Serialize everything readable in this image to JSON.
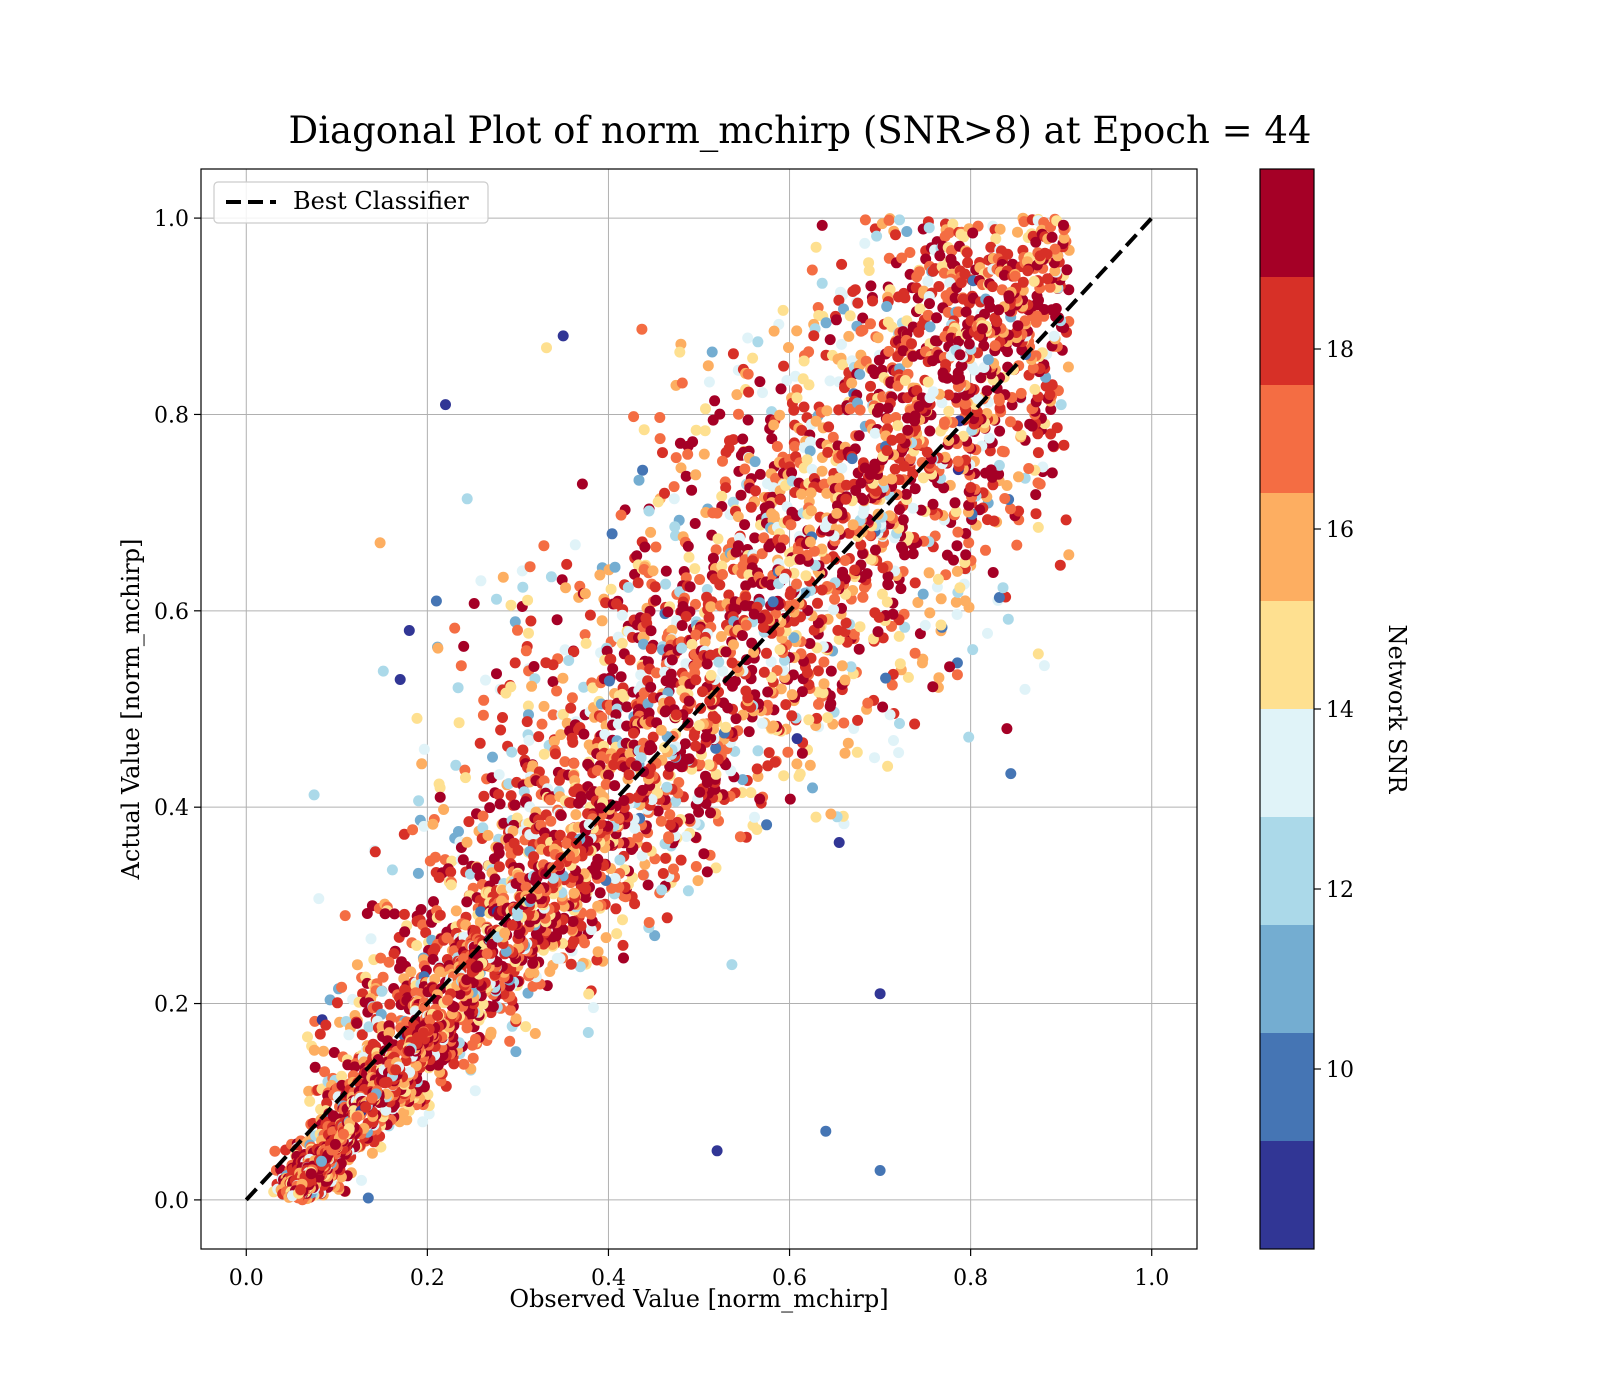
{
  "chart_data": {
    "type": "scatter",
    "title": "Diagonal Plot of norm_mchirp (SNR>8) at Epoch = 44",
    "xlabel": "Observed Value [norm_mchirp]",
    "ylabel": "Actual Value [norm_mchirp]",
    "xlim": [
      -0.05,
      1.05
    ],
    "ylim": [
      -0.05,
      1.05
    ],
    "xticks": [
      "0.0",
      "0.2",
      "0.4",
      "0.6",
      "0.8",
      "1.0"
    ],
    "yticks": [
      "0.0",
      "0.2",
      "0.4",
      "0.6",
      "0.8",
      "1.0"
    ],
    "grid": true,
    "legend": {
      "position": "top-left",
      "entries": [
        "Best Classifier"
      ]
    },
    "reference_line": {
      "name": "Best Classifier",
      "style": "dashed",
      "color": "#000000",
      "x": [
        0.0,
        1.0
      ],
      "y": [
        0.0,
        1.0
      ]
    },
    "colorbar": {
      "label": "Network SNR",
      "min": 8,
      "max": 20,
      "ticks": [
        "10",
        "12",
        "14",
        "16",
        "18"
      ],
      "tick_values": [
        10,
        12,
        14,
        16,
        18
      ],
      "colors": [
        "#313695",
        "#4575b4",
        "#74add1",
        "#abd9e9",
        "#e0f3f8",
        "#ffffbf",
        "#fee090",
        "#fdae61",
        "#f46d43",
        "#d73027",
        "#a50026"
      ],
      "bin_edges": [
        8,
        9.2,
        10.4,
        11.6,
        12.8,
        14,
        15.2,
        16.4,
        17.6,
        18.8,
        20
      ]
    },
    "series": [
      {
        "color_by": "Network SNR",
        "points_described": "dense cloud along y = x from (0.04, 0.0) to (0.9, 1.0); high-SNR (dark red) points concentrated on the diagonal, low-SNR (blue) points scattered at the edges",
        "sample_points": [
          {
            "x": 0.17,
            "y": 0.53,
            "snr": 8.5
          },
          {
            "x": 0.22,
            "y": 0.81,
            "snr": 8.5
          },
          {
            "x": 0.35,
            "y": 0.88,
            "snr": 8.5
          },
          {
            "x": 0.18,
            "y": 0.58,
            "snr": 8.5
          },
          {
            "x": 0.21,
            "y": 0.61,
            "snr": 10.0
          },
          {
            "x": 0.7,
            "y": 0.21,
            "snr": 8.5
          },
          {
            "x": 0.64,
            "y": 0.07,
            "snr": 10.0
          },
          {
            "x": 0.7,
            "y": 0.03,
            "snr": 10.0
          },
          {
            "x": 0.52,
            "y": 0.05,
            "snr": 8.5
          },
          {
            "x": 0.84,
            "y": 0.48,
            "snr": 19.0
          },
          {
            "x": 0.9,
            "y": 0.81,
            "snr": 12.5
          },
          {
            "x": 0.86,
            "y": 0.52,
            "snr": 13.5
          }
        ]
      }
    ]
  }
}
